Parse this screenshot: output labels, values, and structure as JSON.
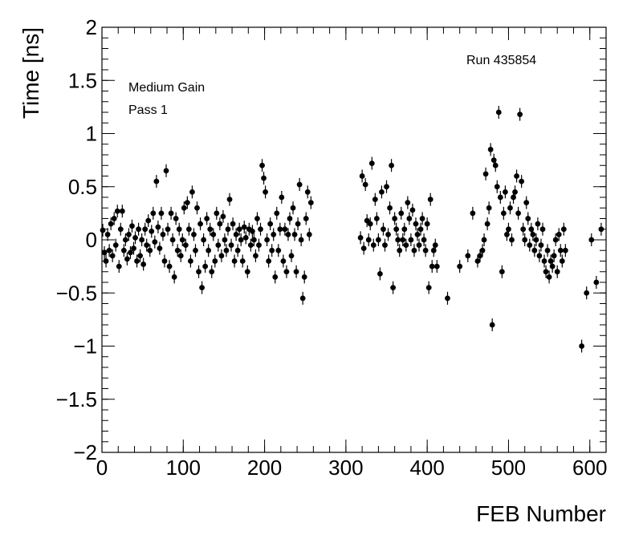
{
  "chart_data": {
    "type": "scatter",
    "title": "",
    "xlabel": "FEB Number",
    "ylabel": "Time [ns]",
    "xlim": [
      0,
      620
    ],
    "ylim": [
      -2,
      2
    ],
    "xticks": [
      "0",
      "100",
      "200",
      "300",
      "400",
      "500",
      "600"
    ],
    "yticks": [
      "−2",
      "−1.5",
      "−1",
      "−0.5",
      "0",
      "0.5",
      "1",
      "1.5",
      "2"
    ],
    "grid": false,
    "marker_color": "#000000",
    "annotations": {
      "gain": "Medium Gain",
      "pass": "Pass 1",
      "run": "Run 435854"
    },
    "points": [
      [
        1,
        0.09
      ],
      [
        3,
        -0.12
      ],
      [
        5,
        -0.2
      ],
      [
        7,
        0.05
      ],
      [
        9,
        -0.1
      ],
      [
        11,
        0.15
      ],
      [
        13,
        -0.15
      ],
      [
        15,
        0.2
      ],
      [
        17,
        -0.05
      ],
      [
        19,
        0.27
      ],
      [
        21,
        -0.25
      ],
      [
        23,
        0.1
      ],
      [
        25,
        0.27
      ],
      [
        27,
        -0.1
      ],
      [
        29,
        0.0
      ],
      [
        31,
        -0.18
      ],
      [
        33,
        0.05
      ],
      [
        35,
        -0.12
      ],
      [
        37,
        0.13
      ],
      [
        39,
        -0.08
      ],
      [
        41,
        0.02
      ],
      [
        43,
        -0.2
      ],
      [
        45,
        0.1
      ],
      [
        47,
        -0.15
      ],
      [
        49,
        0.0
      ],
      [
        51,
        -0.23
      ],
      [
        53,
        0.1
      ],
      [
        55,
        -0.05
      ],
      [
        57,
        0.18
      ],
      [
        59,
        -0.1
      ],
      [
        61,
        0.08
      ],
      [
        63,
        0.25
      ],
      [
        65,
        -0.02
      ],
      [
        67,
        0.55
      ],
      [
        69,
        0.12
      ],
      [
        71,
        -0.08
      ],
      [
        73,
        0.25
      ],
      [
        75,
        0.05
      ],
      [
        77,
        -0.2
      ],
      [
        79,
        0.65
      ],
      [
        81,
        0.1
      ],
      [
        83,
        -0.25
      ],
      [
        85,
        0.25
      ],
      [
        87,
        0.0
      ],
      [
        89,
        -0.35
      ],
      [
        91,
        0.2
      ],
      [
        93,
        -0.1
      ],
      [
        95,
        0.1
      ],
      [
        97,
        -0.15
      ],
      [
        99,
        0.0
      ],
      [
        101,
        0.3
      ],
      [
        103,
        -0.05
      ],
      [
        105,
        0.35
      ],
      [
        107,
        0.1
      ],
      [
        109,
        -0.2
      ],
      [
        111,
        0.45
      ],
      [
        113,
        0.05
      ],
      [
        115,
        -0.1
      ],
      [
        117,
        0.3
      ],
      [
        119,
        -0.3
      ],
      [
        121,
        0.15
      ],
      [
        123,
        -0.45
      ],
      [
        125,
        0.0
      ],
      [
        127,
        -0.25
      ],
      [
        129,
        0.2
      ],
      [
        131,
        -0.1
      ],
      [
        133,
        0.1
      ],
      [
        135,
        -0.3
      ],
      [
        137,
        0.05
      ],
      [
        139,
        -0.2
      ],
      [
        141,
        0.25
      ],
      [
        143,
        -0.05
      ],
      [
        145,
        0.15
      ],
      [
        147,
        -0.15
      ],
      [
        149,
        0.22
      ],
      [
        151,
        0.0
      ],
      [
        153,
        -0.1
      ],
      [
        155,
        0.1
      ],
      [
        157,
        0.38
      ],
      [
        159,
        -0.05
      ],
      [
        161,
        0.15
      ],
      [
        163,
        -0.2
      ],
      [
        165,
        0.05
      ],
      [
        167,
        -0.1
      ],
      [
        169,
        0.1
      ],
      [
        171,
        0.0
      ],
      [
        173,
        -0.2
      ],
      [
        175,
        0.12
      ],
      [
        177,
        0.02
      ],
      [
        179,
        -0.3
      ],
      [
        181,
        0.1
      ],
      [
        183,
        -0.05
      ],
      [
        185,
        0.08
      ],
      [
        187,
        0.0
      ],
      [
        189,
        -0.15
      ],
      [
        191,
        0.2
      ],
      [
        193,
        -0.05
      ],
      [
        195,
        0.1
      ],
      [
        197,
        0.7
      ],
      [
        199,
        0.58
      ],
      [
        201,
        0.45
      ],
      [
        203,
        0.0
      ],
      [
        205,
        -0.2
      ],
      [
        207,
        0.15
      ],
      [
        209,
        -0.1
      ],
      [
        211,
        0.05
      ],
      [
        213,
        -0.35
      ],
      [
        215,
        0.25
      ],
      [
        217,
        -0.1
      ],
      [
        219,
        0.1
      ],
      [
        221,
        0.4
      ],
      [
        223,
        -0.2
      ],
      [
        225,
        0.1
      ],
      [
        227,
        -0.3
      ],
      [
        229,
        0.05
      ],
      [
        231,
        0.2
      ],
      [
        233,
        -0.15
      ],
      [
        235,
        0.3
      ],
      [
        237,
        0.05
      ],
      [
        239,
        -0.3
      ],
      [
        241,
        0.15
      ],
      [
        243,
        0.52
      ],
      [
        245,
        0.0
      ],
      [
        247,
        -0.55
      ],
      [
        249,
        -0.35
      ],
      [
        251,
        0.2
      ],
      [
        253,
        0.45
      ],
      [
        255,
        0.05
      ],
      [
        257,
        0.35
      ],
      [
        318,
        0.02
      ],
      [
        320,
        0.6
      ],
      [
        322,
        -0.08
      ],
      [
        324,
        0.52
      ],
      [
        326,
        0.18
      ],
      [
        328,
        0.0
      ],
      [
        330,
        0.15
      ],
      [
        332,
        0.72
      ],
      [
        334,
        -0.05
      ],
      [
        336,
        0.38
      ],
      [
        338,
        0.2
      ],
      [
        340,
        0.0
      ],
      [
        342,
        -0.32
      ],
      [
        344,
        0.45
      ],
      [
        346,
        0.1
      ],
      [
        348,
        -0.05
      ],
      [
        350,
        0.5
      ],
      [
        352,
        0.05
      ],
      [
        354,
        0.3
      ],
      [
        356,
        0.7
      ],
      [
        358,
        -0.45
      ],
      [
        360,
        0.2
      ],
      [
        362,
        0.1
      ],
      [
        364,
        0.0
      ],
      [
        366,
        -0.1
      ],
      [
        368,
        0.25
      ],
      [
        370,
        0.0
      ],
      [
        372,
        0.1
      ],
      [
        374,
        -0.05
      ],
      [
        376,
        0.35
      ],
      [
        378,
        0.2
      ],
      [
        380,
        0.0
      ],
      [
        382,
        0.28
      ],
      [
        384,
        -0.1
      ],
      [
        386,
        0.15
      ],
      [
        388,
        0.05
      ],
      [
        390,
        -0.05
      ],
      [
        392,
        0.1
      ],
      [
        394,
        0.2
      ],
      [
        396,
        0.0
      ],
      [
        398,
        -0.1
      ],
      [
        400,
        0.15
      ],
      [
        402,
        -0.45
      ],
      [
        404,
        0.38
      ],
      [
        406,
        -0.25
      ],
      [
        408,
        -0.1
      ],
      [
        410,
        -0.05
      ],
      [
        412,
        -0.25
      ],
      [
        425,
        -0.55
      ],
      [
        440,
        -0.25
      ],
      [
        450,
        -0.15
      ],
      [
        456,
        0.25
      ],
      [
        462,
        -0.2
      ],
      [
        465,
        -0.15
      ],
      [
        468,
        -0.1
      ],
      [
        470,
        0.0
      ],
      [
        472,
        0.62
      ],
      [
        474,
        0.15
      ],
      [
        476,
        0.3
      ],
      [
        478,
        0.85
      ],
      [
        480,
        -0.8
      ],
      [
        482,
        0.75
      ],
      [
        484,
        0.7
      ],
      [
        486,
        0.5
      ],
      [
        488,
        1.2
      ],
      [
        490,
        0.4
      ],
      [
        492,
        -0.3
      ],
      [
        494,
        0.25
      ],
      [
        496,
        0.45
      ],
      [
        498,
        0.05
      ],
      [
        500,
        0.1
      ],
      [
        502,
        0.3
      ],
      [
        504,
        0.0
      ],
      [
        506,
        0.4
      ],
      [
        508,
        0.45
      ],
      [
        510,
        0.6
      ],
      [
        512,
        0.25
      ],
      [
        514,
        1.18
      ],
      [
        516,
        0.55
      ],
      [
        518,
        0.1
      ],
      [
        520,
        0.0
      ],
      [
        522,
        0.35
      ],
      [
        524,
        0.2
      ],
      [
        526,
        -0.05
      ],
      [
        528,
        0.1
      ],
      [
        530,
        0.05
      ],
      [
        532,
        -0.1
      ],
      [
        534,
        0.0
      ],
      [
        536,
        0.15
      ],
      [
        538,
        -0.15
      ],
      [
        540,
        -0.05
      ],
      [
        542,
        0.1
      ],
      [
        544,
        -0.2
      ],
      [
        546,
        -0.3
      ],
      [
        548,
        -0.1
      ],
      [
        550,
        -0.35
      ],
      [
        552,
        -0.2
      ],
      [
        554,
        -0.25
      ],
      [
        556,
        -0.15
      ],
      [
        558,
        0.0
      ],
      [
        560,
        -0.3
      ],
      [
        562,
        0.05
      ],
      [
        564,
        -0.1
      ],
      [
        566,
        -0.2
      ],
      [
        568,
        0.1
      ],
      [
        570,
        -0.1
      ],
      [
        590,
        -1.0
      ],
      [
        596,
        -0.5
      ],
      [
        602,
        0.0
      ],
      [
        608,
        -0.4
      ],
      [
        614,
        0.1
      ]
    ]
  }
}
